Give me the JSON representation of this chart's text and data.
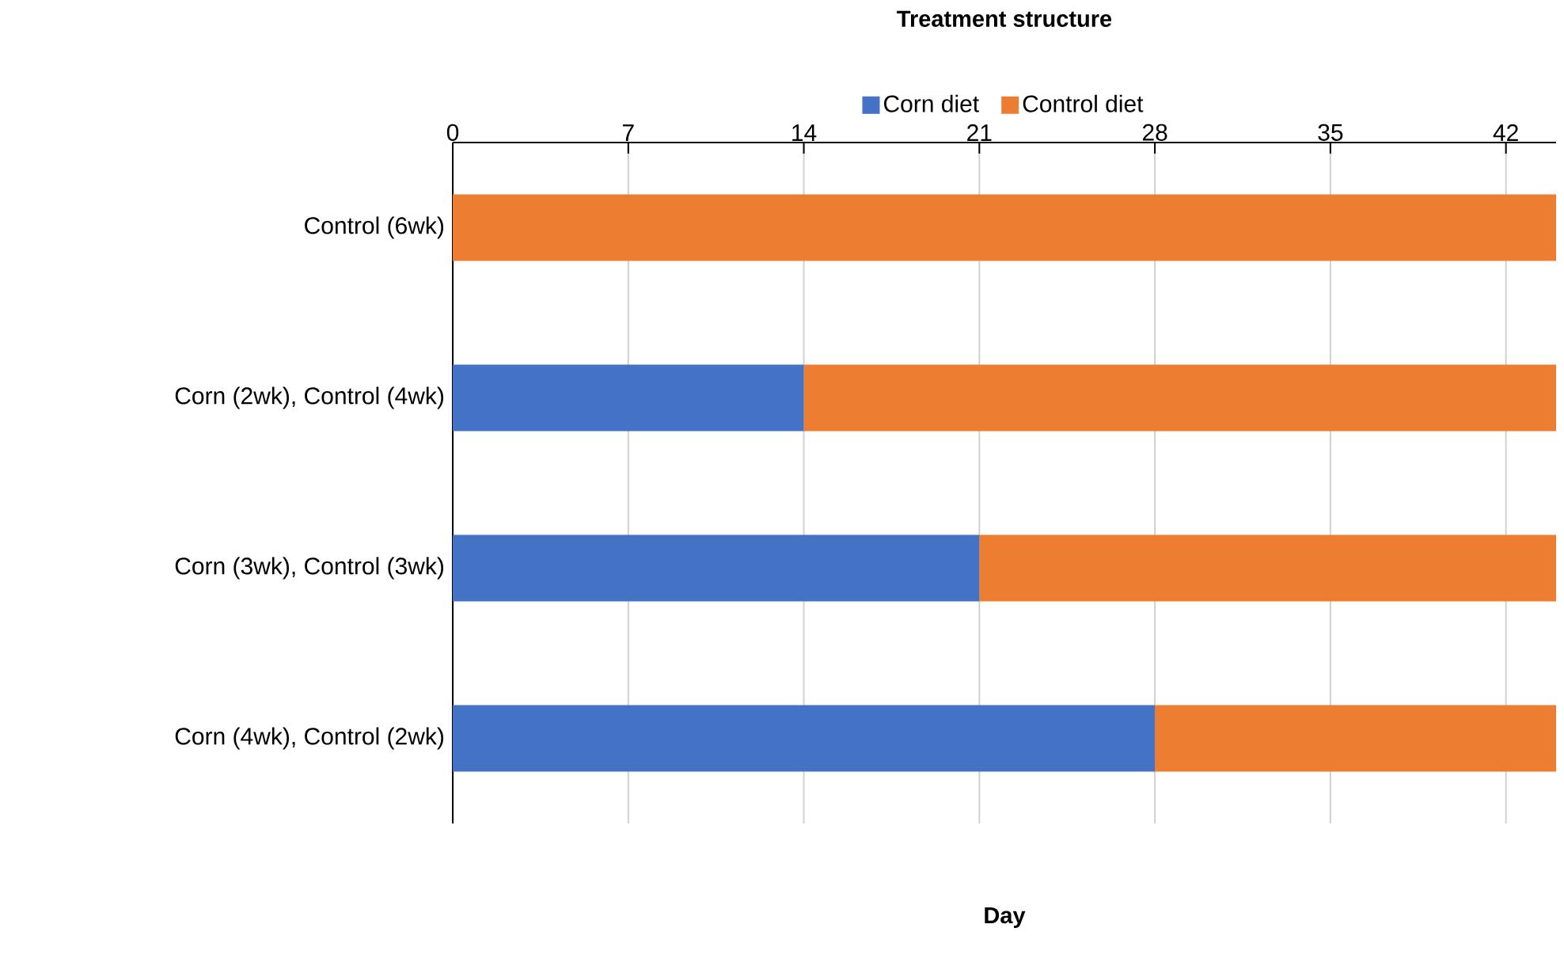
{
  "chart_data": {
    "type": "bar",
    "orientation": "horizontal",
    "stacked": true,
    "title": "Treatment structure",
    "xlabel": "Day",
    "categories": [
      "Control (6wk)",
      "Corn (2wk), Control (4wk)",
      "Corn (3wk), Control (3wk)",
      "Corn (4wk), Control (2wk)"
    ],
    "series": [
      {
        "name": "Corn diet",
        "color": "#4472c4",
        "values": [
          0,
          14,
          21,
          28
        ]
      },
      {
        "name": "Control diet",
        "color": "#ed7d31",
        "values": [
          44,
          30,
          23,
          16
        ]
      }
    ],
    "xlim": [
      0,
      44
    ],
    "xticks": [
      0,
      7,
      14,
      21,
      28,
      35,
      42
    ],
    "grid": "x",
    "legend": "top"
  }
}
